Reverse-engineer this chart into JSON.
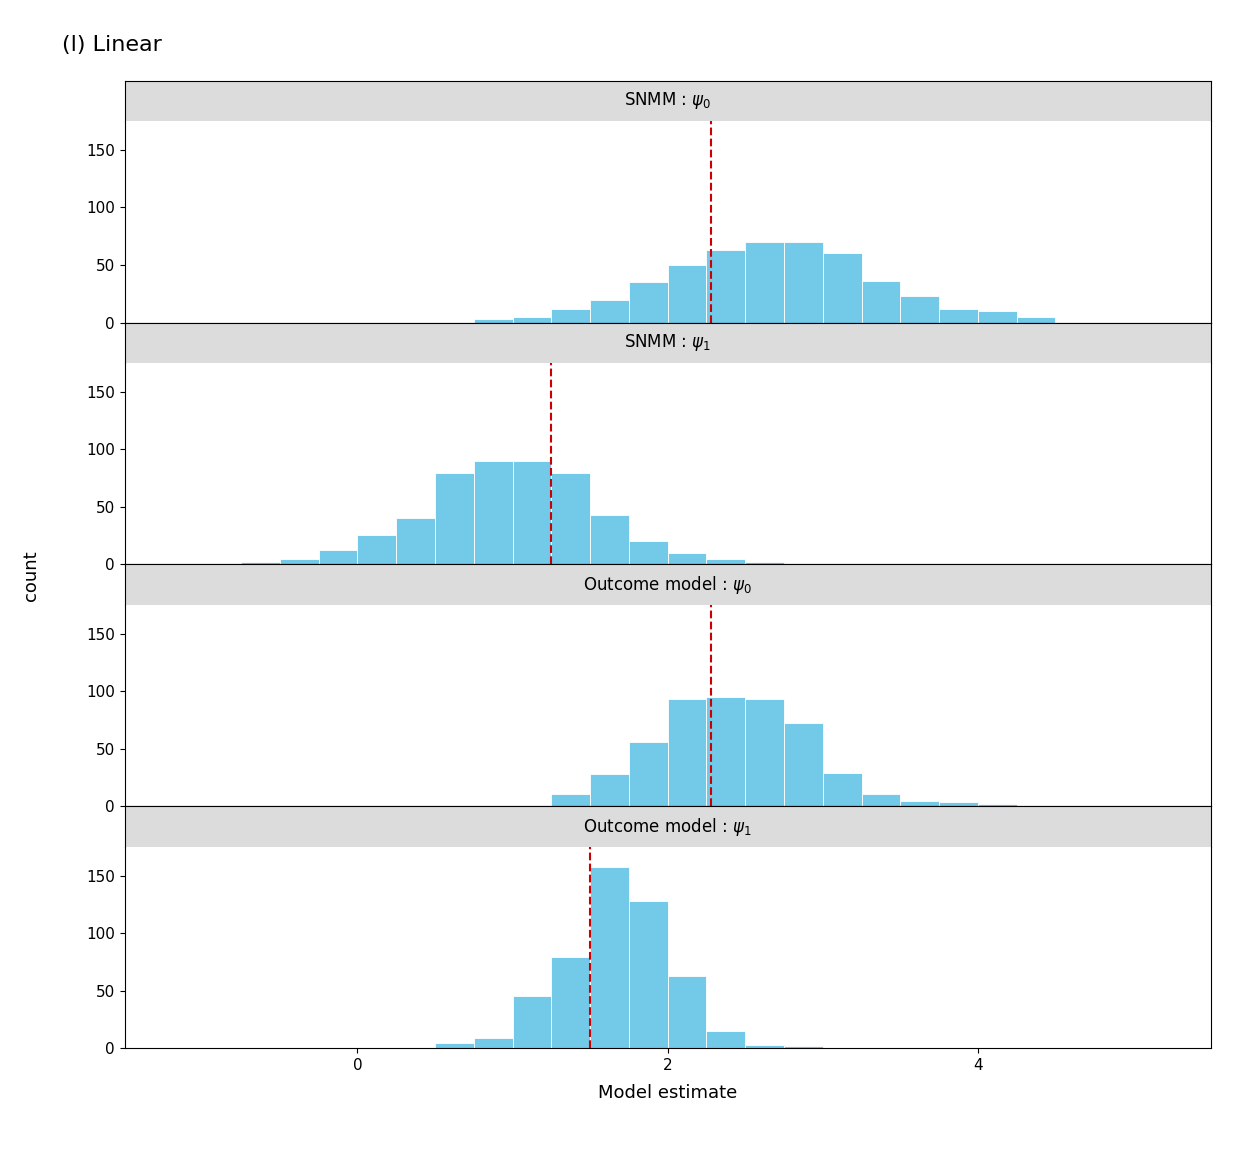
{
  "title": "(l) Linear",
  "xlabel": "Model estimate",
  "ylabel": "count",
  "bar_color": "#72C9E8",
  "bar_edgecolor": "white",
  "vline_color": "#CC0000",
  "vline_style": "--",
  "xlim": [
    -1.5,
    5.5
  ],
  "xticks": [
    0,
    2,
    4
  ],
  "ylim": [
    0,
    175
  ],
  "yticks": [
    0,
    50,
    100,
    150
  ],
  "panels": [
    {
      "label": "SNMM : $\\psi_0$",
      "vline_x": 2.28,
      "bin_edges": [
        0.75,
        1.0,
        1.25,
        1.5,
        1.75,
        2.0,
        2.25,
        2.5,
        2.75,
        3.0,
        3.25,
        3.5,
        3.75,
        4.0,
        4.25,
        4.5
      ],
      "bin_heights": [
        3,
        5,
        12,
        20,
        35,
        50,
        63,
        70,
        70,
        60,
        36,
        23,
        12,
        10,
        5,
        2
      ]
    },
    {
      "label": "SNMM : $\\psi_1$",
      "vline_x": 1.25,
      "bin_edges": [
        -0.75,
        -0.5,
        -0.25,
        0.0,
        0.25,
        0.5,
        0.75,
        1.0,
        1.25,
        1.5,
        1.75,
        2.0,
        2.25,
        2.5,
        2.75
      ],
      "bin_heights": [
        2,
        5,
        13,
        26,
        40,
        79,
        90,
        90,
        79,
        43,
        20,
        10,
        5,
        2,
        0
      ]
    },
    {
      "label": "Outcome model : $\\psi_0$",
      "vline_x": 2.28,
      "bin_edges": [
        1.25,
        1.5,
        1.75,
        2.0,
        2.25,
        2.5,
        2.75,
        3.0,
        3.25,
        3.5,
        3.75,
        4.0,
        4.25
      ],
      "bin_heights": [
        11,
        28,
        56,
        93,
        95,
        93,
        72,
        29,
        11,
        5,
        4,
        2,
        0
      ]
    },
    {
      "label": "Outcome model : $\\psi_1$",
      "vline_x": 1.5,
      "bin_edges": [
        0.5,
        0.75,
        1.0,
        1.25,
        1.5,
        1.75,
        2.0,
        2.25,
        2.5,
        2.75,
        3.0
      ],
      "bin_heights": [
        5,
        9,
        45,
        79,
        157,
        128,
        63,
        15,
        3,
        2,
        0
      ]
    }
  ],
  "panel_title_fontsize": 12,
  "axis_label_fontsize": 13,
  "tick_fontsize": 11,
  "main_title_fontsize": 16,
  "panel_bg_color": "#DCDCDC",
  "panel_title_color": "black",
  "grid_color": "#FFFFFF",
  "grid_linewidth": 1.0,
  "plot_bg_color": "white",
  "strip_height_ratio": 0.18
}
